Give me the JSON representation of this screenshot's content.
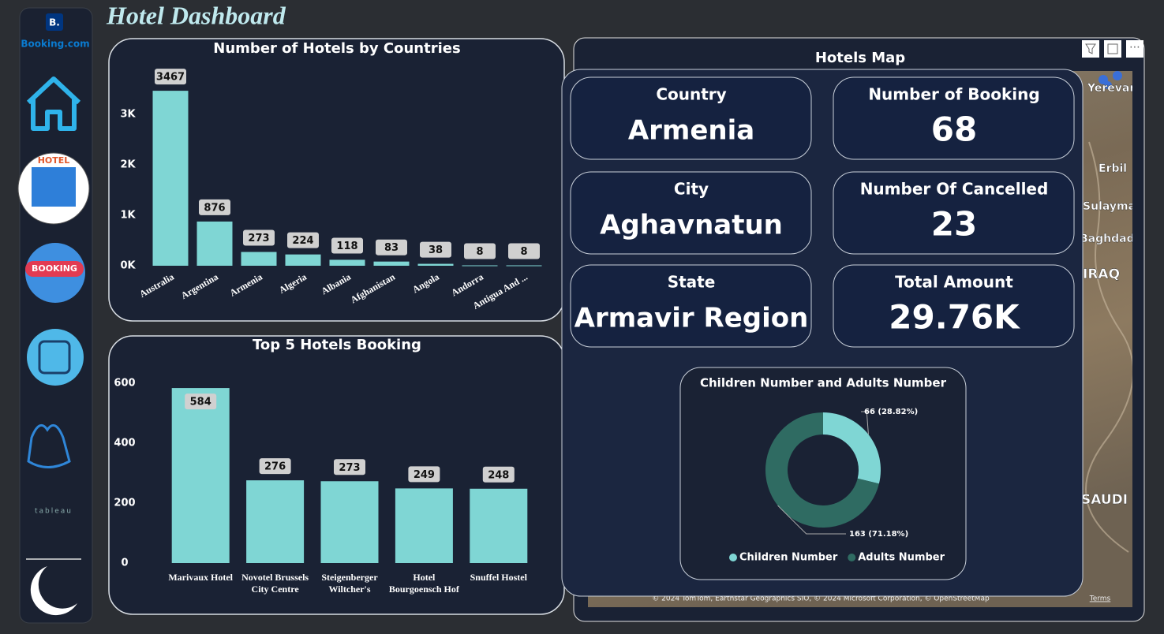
{
  "title": "Hotel Dashboard",
  "sidebar": {
    "logo_mark": "B.",
    "logo_text": "Booking.com",
    "hotel_icon_text": "HOTEL",
    "booking_icon_text": "BOOKING",
    "tableau_text": "tableau"
  },
  "chart_data": [
    {
      "type": "bar",
      "title": "Number of Hotels by Countries",
      "categories": [
        "Australia",
        "Argentina",
        "Armenia",
        "Algeria",
        "Albania",
        "Afghanistan",
        "Angola",
        "Andorra",
        "Antigua And ..."
      ],
      "values": [
        3467,
        876,
        273,
        224,
        118,
        83,
        38,
        8,
        8
      ],
      "color": "#7fd6d4",
      "ylim": [
        0,
        3500
      ],
      "yticks": [
        {
          "value": 0,
          "label": "0K"
        },
        {
          "value": 1000,
          "label": "1K"
        },
        {
          "value": 2000,
          "label": "2K"
        },
        {
          "value": 3000,
          "label": "3K"
        }
      ],
      "grid": false
    },
    {
      "type": "bar",
      "title": "Top 5 Hotels Booking",
      "categories": [
        "Marivaux Hotel",
        "Novotel Brussels City Centre",
        "Steigenberger Wiltcher's",
        "Hotel Bourgoensch Hof",
        "Snuffel Hostel"
      ],
      "values": [
        584,
        276,
        273,
        249,
        248
      ],
      "color": "#7fd6d4",
      "ylim": [
        0,
        600
      ],
      "yticks": [
        0,
        200,
        400,
        600
      ],
      "grid": false
    },
    {
      "type": "pie",
      "title": "Children Number and Adults Number",
      "donut": true,
      "categories": [
        "Children Number",
        "Adults Number"
      ],
      "values": [
        66,
        163
      ],
      "value_labels": [
        "66 (28.82%)",
        "163 (71.18%)"
      ],
      "colors": [
        "#7fd6d4",
        "#2f6b62"
      ]
    }
  ],
  "map": {
    "title": "Hotels Map",
    "place_labels": [
      "Yerevan",
      "Erbil",
      "Sulaymaniyah",
      "Baghdad",
      "IRAQ",
      "SAUDI ARABIA"
    ],
    "attribution": "© 2024 TomTom, Earthstar Geographics SIO, © 2024 Microsoft Corporation, © OpenStreetMap",
    "terms": "Terms"
  },
  "kpis": [
    {
      "label": "Country",
      "value": "Armenia"
    },
    {
      "label": "Number of Booking",
      "value": 68
    },
    {
      "label": "City",
      "value": "Aghavnatun"
    },
    {
      "label": "Number Of Cancelled",
      "value": 23
    },
    {
      "label": "State",
      "value": "Armavir Region"
    },
    {
      "label": "Total Amount",
      "value": "29.76K"
    }
  ]
}
